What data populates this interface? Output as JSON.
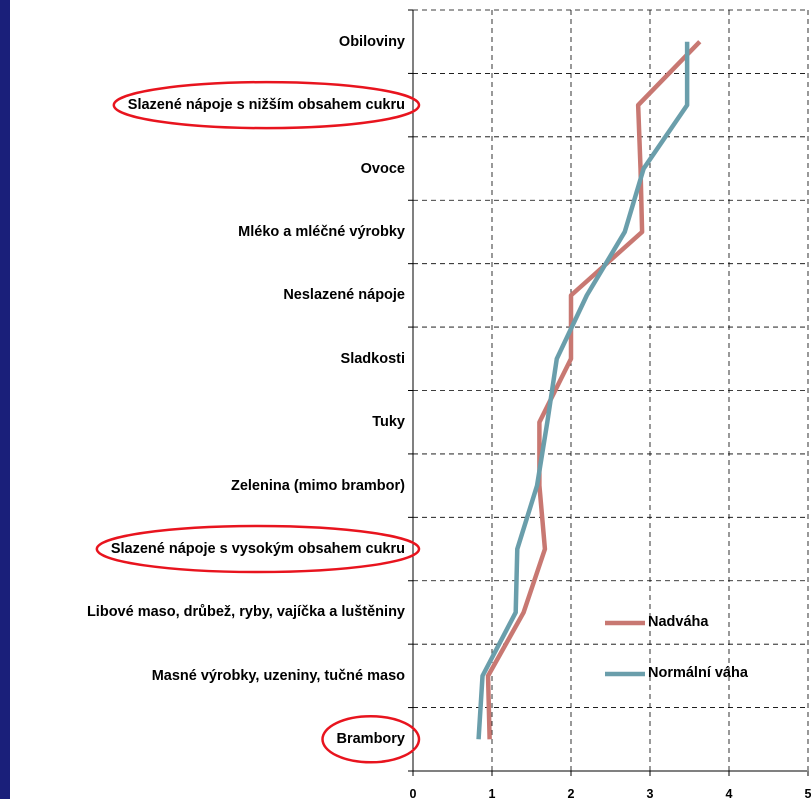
{
  "chart_data": {
    "type": "line",
    "orientation": "horizontal",
    "categories": [
      "Obiloviny",
      "Slazené nápoje s nižším obsahem cukru",
      "Ovoce",
      "Mléko a mléčné výrobky",
      "Neslazené nápoje",
      "Sladkosti",
      "Tuky",
      "Zelenina (mimo brambor)",
      "Slazené nápoje s vysokým obsahem cukru",
      "Libové maso, drůbež, ryby, vajíčka a luštěniny",
      "Masné výrobky, uzeniny, tučné maso",
      "Brambory"
    ],
    "series": [
      {
        "name": "Nadváha",
        "color": "#c87872",
        "values": [
          3.63,
          2.85,
          2.88,
          2.9,
          2.0,
          2.0,
          1.6,
          1.6,
          1.67,
          1.4,
          0.95,
          0.97
        ]
      },
      {
        "name": "Normální váha",
        "color": "#6a9eab",
        "values": [
          3.47,
          3.47,
          2.92,
          2.68,
          2.2,
          1.82,
          1.7,
          1.57,
          1.32,
          1.3,
          0.88,
          0.83
        ]
      }
    ],
    "xlim": [
      0,
      5
    ],
    "xticks": [
      "0",
      "1",
      "2",
      "3",
      "4",
      "5"
    ],
    "grid": true,
    "legend": "bottom-right",
    "highlighted_categories": [
      "Slazené nápoje s nižším obsahem cukru",
      "Slazené nápoje s vysokým obsahem cukru",
      "Brambory"
    ],
    "highlight_color": "#e8141e"
  }
}
